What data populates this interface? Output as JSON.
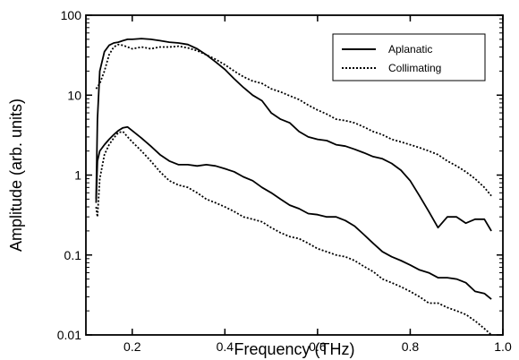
{
  "chart_data": {
    "type": "line",
    "title": "",
    "xlabel": "Frequency (THz)",
    "ylabel": "Amplitude (arb. units)",
    "xlim": [
      0.1,
      1.0
    ],
    "ylim": [
      0.01,
      100
    ],
    "yscale": "log",
    "grid": false,
    "legend": {
      "placement": "top-right"
    },
    "x_ticks": [
      {
        "value": 0.2,
        "label": "0.2"
      },
      {
        "value": 0.4,
        "label": "0.4"
      },
      {
        "value": 0.6,
        "label": "0.6"
      },
      {
        "value": 0.8,
        "label": "0.8"
      },
      {
        "value": 1.0,
        "label": "1.0"
      }
    ],
    "y_ticks": [
      {
        "value": 0.01,
        "label": "0.01"
      },
      {
        "value": 0.1,
        "label": "0.1"
      },
      {
        "value": 1,
        "label": "1"
      },
      {
        "value": 10,
        "label": "10"
      },
      {
        "value": 100,
        "label": "100"
      }
    ],
    "series": [
      {
        "name": "Aplanatic",
        "style": "solid",
        "x": [
          0.122,
          0.125,
          0.13,
          0.14,
          0.15,
          0.16,
          0.17,
          0.18,
          0.19,
          0.2,
          0.22,
          0.24,
          0.26,
          0.28,
          0.3,
          0.32,
          0.34,
          0.36,
          0.38,
          0.4,
          0.42,
          0.44,
          0.46,
          0.48,
          0.5,
          0.52,
          0.54,
          0.56,
          0.58,
          0.6,
          0.62,
          0.64,
          0.66,
          0.68,
          0.7,
          0.72,
          0.74,
          0.76,
          0.78,
          0.8,
          0.82,
          0.84,
          0.86,
          0.88,
          0.9,
          0.92,
          0.94,
          0.96,
          0.975
        ],
        "y": [
          0.5,
          5.0,
          20,
          35,
          42,
          45,
          46,
          48,
          50,
          50,
          51,
          50,
          48,
          46,
          45,
          43,
          38,
          32,
          26,
          21,
          16,
          12.5,
          10,
          8.5,
          6.0,
          5.0,
          4.5,
          3.5,
          3.0,
          2.8,
          2.7,
          2.4,
          2.3,
          2.1,
          1.9,
          1.7,
          1.6,
          1.4,
          1.15,
          0.85,
          0.55,
          0.35,
          0.22,
          0.3,
          0.3,
          0.25,
          0.28,
          0.28,
          0.2
        ]
      },
      {
        "name": "Collimating",
        "style": "dotted",
        "x": [
          0.122,
          0.13,
          0.14,
          0.15,
          0.16,
          0.17,
          0.18,
          0.19,
          0.2,
          0.22,
          0.24,
          0.26,
          0.28,
          0.3,
          0.32,
          0.34,
          0.36,
          0.38,
          0.4,
          0.42,
          0.44,
          0.46,
          0.48,
          0.5,
          0.52,
          0.54,
          0.56,
          0.58,
          0.6,
          0.62,
          0.64,
          0.66,
          0.68,
          0.7,
          0.72,
          0.74,
          0.76,
          0.78,
          0.8,
          0.82,
          0.84,
          0.86,
          0.88,
          0.9,
          0.92,
          0.94,
          0.96,
          0.975
        ],
        "y": [
          12,
          14,
          20,
          32,
          40,
          43,
          42,
          40,
          38,
          40,
          38,
          40,
          40,
          41,
          39,
          36,
          32,
          28,
          24,
          20,
          17,
          15,
          14,
          12,
          11,
          9.8,
          8.8,
          7.5,
          6.5,
          5.8,
          5.0,
          4.8,
          4.5,
          4.0,
          3.5,
          3.2,
          2.8,
          2.6,
          2.4,
          2.2,
          2.0,
          1.8,
          1.5,
          1.3,
          1.1,
          0.9,
          0.7,
          0.55
        ]
      },
      {
        "name": "Aplanatic",
        "style": "solid",
        "x": [
          0.122,
          0.125,
          0.13,
          0.14,
          0.15,
          0.16,
          0.17,
          0.18,
          0.19,
          0.2,
          0.22,
          0.24,
          0.26,
          0.28,
          0.3,
          0.32,
          0.34,
          0.36,
          0.38,
          0.4,
          0.42,
          0.44,
          0.46,
          0.48,
          0.5,
          0.52,
          0.54,
          0.56,
          0.58,
          0.6,
          0.62,
          0.64,
          0.66,
          0.68,
          0.7,
          0.72,
          0.74,
          0.76,
          0.78,
          0.8,
          0.82,
          0.84,
          0.86,
          0.88,
          0.9,
          0.92,
          0.94,
          0.96,
          0.975
        ],
        "y": [
          0.45,
          1.5,
          2.0,
          2.4,
          2.8,
          3.2,
          3.6,
          3.9,
          4.0,
          3.6,
          2.9,
          2.3,
          1.8,
          1.5,
          1.35,
          1.35,
          1.3,
          1.35,
          1.3,
          1.2,
          1.1,
          0.95,
          0.85,
          0.7,
          0.6,
          0.5,
          0.42,
          0.38,
          0.33,
          0.32,
          0.3,
          0.3,
          0.27,
          0.23,
          0.18,
          0.14,
          0.11,
          0.095,
          0.085,
          0.075,
          0.065,
          0.06,
          0.052,
          0.052,
          0.05,
          0.045,
          0.035,
          0.033,
          0.028
        ]
      },
      {
        "name": "Collimating",
        "style": "dotted",
        "x": [
          0.122,
          0.125,
          0.13,
          0.14,
          0.15,
          0.16,
          0.17,
          0.18,
          0.19,
          0.2,
          0.22,
          0.24,
          0.26,
          0.28,
          0.3,
          0.32,
          0.34,
          0.36,
          0.38,
          0.4,
          0.42,
          0.44,
          0.46,
          0.48,
          0.5,
          0.52,
          0.54,
          0.56,
          0.58,
          0.6,
          0.62,
          0.64,
          0.66,
          0.68,
          0.7,
          0.72,
          0.74,
          0.76,
          0.78,
          0.8,
          0.82,
          0.84,
          0.86,
          0.88,
          0.9,
          0.92,
          0.94,
          0.96,
          0.975
        ],
        "y": [
          0.4,
          0.3,
          0.9,
          1.8,
          2.4,
          2.9,
          3.4,
          3.5,
          3.0,
          2.6,
          2.0,
          1.5,
          1.1,
          0.85,
          0.75,
          0.7,
          0.6,
          0.5,
          0.45,
          0.4,
          0.35,
          0.3,
          0.28,
          0.26,
          0.22,
          0.19,
          0.17,
          0.16,
          0.14,
          0.12,
          0.11,
          0.1,
          0.095,
          0.085,
          0.072,
          0.062,
          0.05,
          0.045,
          0.04,
          0.035,
          0.03,
          0.025,
          0.025,
          0.022,
          0.02,
          0.018,
          0.015,
          0.012,
          0.01
        ]
      }
    ]
  }
}
